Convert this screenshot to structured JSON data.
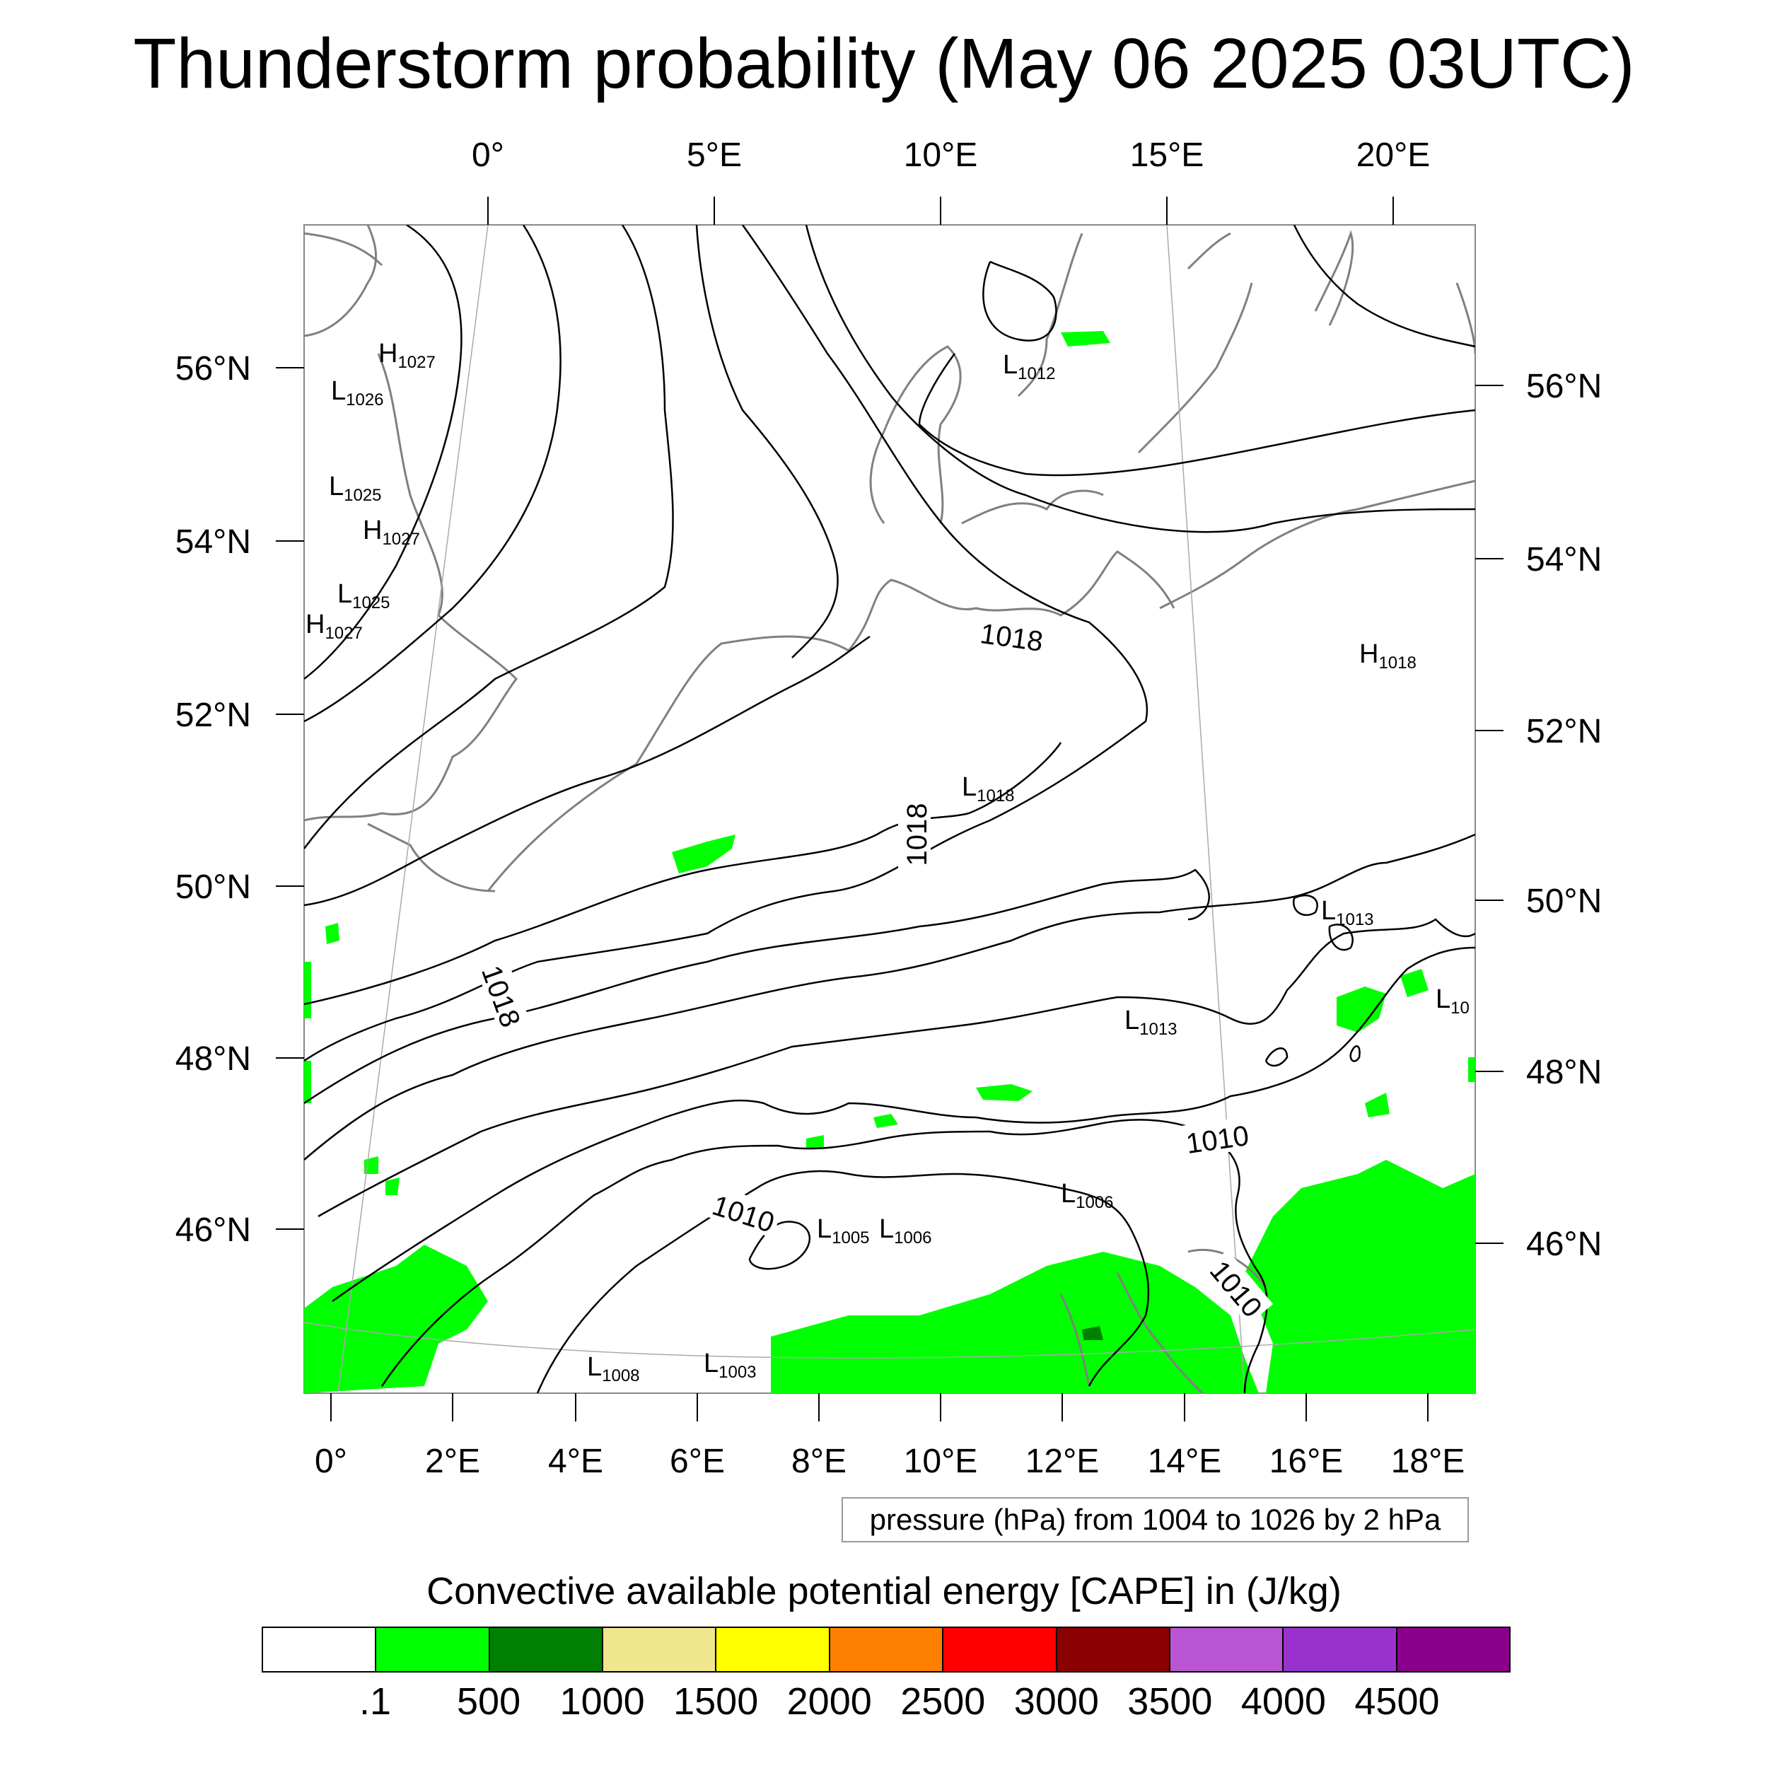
{
  "title": "Thunderstorm probability (May 06 2025 03UTC)",
  "top_lon_labels": [
    "0°",
    "5°E",
    "10°E",
    "15°E",
    "20°E"
  ],
  "bottom_lon_labels": [
    "0°",
    "2°E",
    "4°E",
    "6°E",
    "8°E",
    "10°E",
    "12°E",
    "14°E",
    "16°E",
    "18°E"
  ],
  "left_lat_labels": [
    "56°N",
    "54°N",
    "52°N",
    "50°N",
    "48°N",
    "46°N"
  ],
  "right_lat_labels": [
    "56°N",
    "54°N",
    "52°N",
    "50°N",
    "48°N",
    "46°N"
  ],
  "isobar_labels": [
    "1018",
    "1018",
    "1018",
    "1010",
    "1010",
    "1010"
  ],
  "pressure_centers": [
    {
      "letter": "H",
      "value": "1027"
    },
    {
      "letter": "L",
      "value": "1026"
    },
    {
      "letter": "L",
      "value": "1025"
    },
    {
      "letter": "H",
      "value": "1027"
    },
    {
      "letter": "L",
      "value": "1025"
    },
    {
      "letter": "H",
      "value": "1027"
    },
    {
      "letter": "L",
      "value": "1012"
    },
    {
      "letter": "H",
      "value": "1018"
    },
    {
      "letter": "L",
      "value": "1018"
    },
    {
      "letter": "L",
      "value": "1013"
    },
    {
      "letter": "L",
      "value": "1013"
    },
    {
      "letter": "L",
      "value": "10"
    },
    {
      "letter": "L",
      "value": "1006"
    },
    {
      "letter": "L",
      "value": "1005"
    },
    {
      "letter": "L",
      "value": "1006"
    },
    {
      "letter": "L",
      "value": "1008"
    },
    {
      "letter": "L",
      "value": "1003"
    }
  ],
  "pressure_note": "pressure (hPa) from 1004 to 1026 by 2 hPa",
  "cape_title": "Convective available potential energy [CAPE] in (J/kg)",
  "legend": {
    "colors": [
      "#ffffff",
      "#00ff00",
      "#008000",
      "#f0e68c",
      "#ffff00",
      "#ff8000",
      "#ff0000",
      "#8b0000",
      "#ba55d3",
      "#9932cc",
      "#8b008b"
    ],
    "labels": [
      ".1",
      "500",
      "1000",
      "1500",
      "2000",
      "2500",
      "3000",
      "3500",
      "4000",
      "4500"
    ]
  }
}
